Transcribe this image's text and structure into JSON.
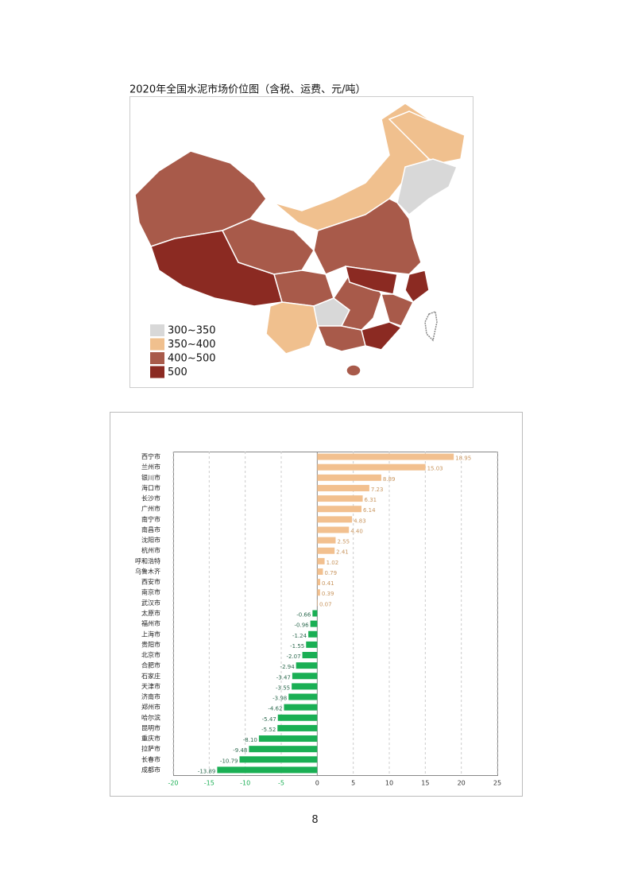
{
  "map": {
    "title": "2020年全国水泥市场价位图（含税、运费、元/吨）",
    "legend": [
      {
        "label": "300~350",
        "color": "#d8d8d8"
      },
      {
        "label": "350~400",
        "color": "#f0c08e"
      },
      {
        "label": "400~500",
        "color": "#a85a4a"
      },
      {
        "label": "500",
        "color": "#8b2a22"
      }
    ]
  },
  "chart_data": {
    "type": "hbar",
    "categories": [
      "西宁市",
      "兰州市",
      "银川市",
      "海口市",
      "长沙市",
      "广州市",
      "南宁市",
      "南昌市",
      "沈阳市",
      "杭州市",
      "呼和浩特",
      "乌鲁木齐",
      "西安市",
      "南京市",
      "武汉市",
      "太原市",
      "福州市",
      "上海市",
      "贵阳市",
      "北京市",
      "合肥市",
      "石家庄",
      "天津市",
      "济南市",
      "郑州市",
      "哈尔滨",
      "昆明市",
      "重庆市",
      "拉萨市",
      "长春市",
      "成都市"
    ],
    "values": [
      18.95,
      15.03,
      8.89,
      7.23,
      6.31,
      6.14,
      4.83,
      4.4,
      2.55,
      2.41,
      1.02,
      0.79,
      0.41,
      0.39,
      0.07,
      -0.66,
      -0.96,
      -1.24,
      -1.55,
      -2.07,
      -2.94,
      -3.47,
      -3.55,
      -3.98,
      -4.62,
      -5.47,
      -5.52,
      -8.1,
      -9.48,
      -10.79,
      -13.89
    ],
    "value_labels": [
      "18.95",
      "15.03",
      "8.89",
      "7.23",
      "6.31",
      "6.14",
      "4.83",
      "4.40",
      "2.55",
      "2.41",
      "1.02",
      "0.79",
      "0.41",
      "0.39",
      "0.07",
      "-0.66",
      "-0.96",
      "-1.24",
      "-1.55",
      "-2.07",
      "-2.94",
      "-3.47",
      "-3.55",
      "-3.98",
      "-4.62",
      "-5.47",
      "-5.52",
      "-8.10",
      "-9.48",
      "-10.79",
      "-13.89"
    ],
    "positive_color": "#f2c08f",
    "negative_color": "#1aaf54",
    "xlim": [
      -20,
      25
    ],
    "xticks": [
      -20,
      -15,
      -10,
      -5,
      0,
      5,
      10,
      15,
      20,
      25
    ],
    "grid": true
  },
  "page_number": 8
}
